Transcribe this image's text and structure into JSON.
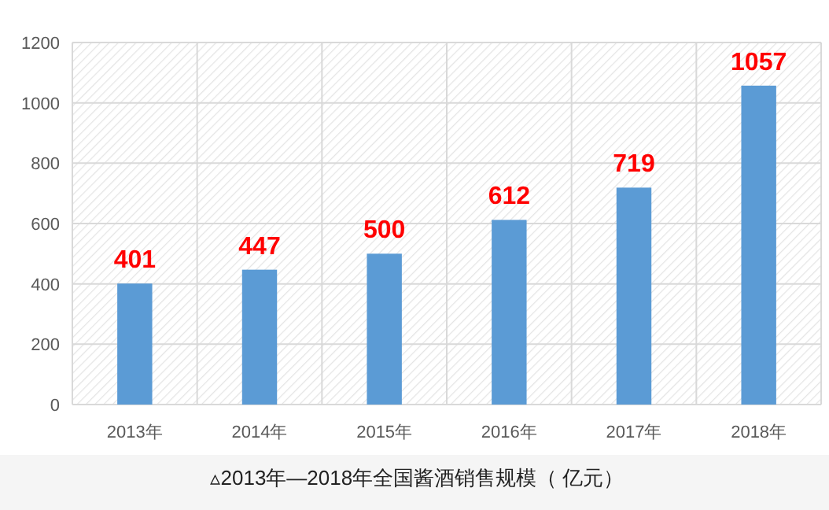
{
  "chart_data": {
    "type": "bar",
    "categories": [
      "2013年",
      "2014年",
      "2015年",
      "2016年",
      "2017年",
      "2018年"
    ],
    "values": [
      401,
      447,
      500,
      612,
      719,
      1057
    ],
    "color": "#5b9bd5",
    "ylim": [
      0,
      1200
    ],
    "yticks": [
      0,
      200,
      400,
      600,
      800,
      1000,
      1200
    ],
    "grid": true,
    "data_labels": true,
    "annotations": [
      "▵2013年—2018年全国酱酒销售规模（ 亿元）"
    ]
  }
}
